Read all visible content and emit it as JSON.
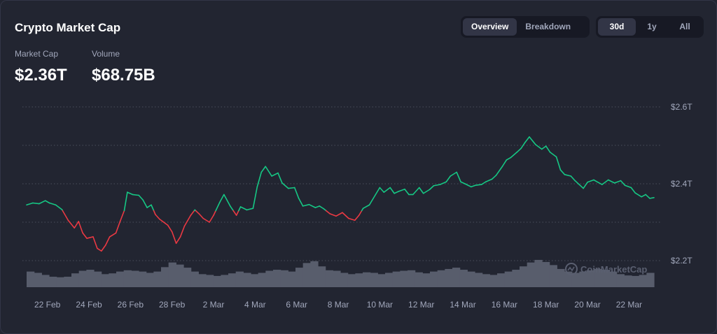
{
  "header": {
    "title": "Crypto Market Cap",
    "market_cap_label": "Market Cap",
    "market_cap_value": "$2.36T",
    "volume_label": "Volume",
    "volume_value": "$68.75B"
  },
  "view_toggle": {
    "overview_label": "Overview",
    "breakdown_label": "Breakdown",
    "selected": "Overview"
  },
  "range_toggle": {
    "d30_label": "30d",
    "y1_label": "1y",
    "all_label": "All",
    "selected": "30d"
  },
  "watermark": "CoinMarketCap",
  "colors": {
    "up": "#16c784",
    "down": "#ea3943",
    "volume": "#585d6c",
    "background": "#222531"
  },
  "chart_data": {
    "type": "line",
    "title": "",
    "y_axis_side": "right",
    "ylim": [
      2.2,
      2.6
    ],
    "y_ticks": [
      {
        "value": 2.2,
        "label": "$2.2T"
      },
      {
        "value": 2.4,
        "label": "$2.4T"
      },
      {
        "value": 2.6,
        "label": "$2.6T"
      }
    ],
    "x_ticks": [
      {
        "day": 1,
        "label": "22 Feb"
      },
      {
        "day": 3,
        "label": "24 Feb"
      },
      {
        "day": 5,
        "label": "26 Feb"
      },
      {
        "day": 7,
        "label": "28 Feb"
      },
      {
        "day": 9,
        "label": "2 Mar"
      },
      {
        "day": 11,
        "label": "4 Mar"
      },
      {
        "day": 13,
        "label": "6 Mar"
      },
      {
        "day": 15,
        "label": "8 Mar"
      },
      {
        "day": 17,
        "label": "10 Mar"
      },
      {
        "day": 19,
        "label": "12 Mar"
      },
      {
        "day": 21,
        "label": "14 Mar"
      },
      {
        "day": 23,
        "label": "16 Mar"
      },
      {
        "day": 25,
        "label": "18 Mar"
      },
      {
        "day": 27,
        "label": "20 Mar"
      },
      {
        "day": 29,
        "label": "22 Mar"
      }
    ],
    "grid": true,
    "baseline_value": 2.33,
    "series": [
      {
        "points": [
          [
            0.0,
            2.345
          ],
          [
            0.3,
            2.35
          ],
          [
            0.6,
            2.348
          ],
          [
            0.9,
            2.356
          ],
          [
            1.1,
            2.35
          ],
          [
            1.4,
            2.345
          ],
          [
            1.7,
            2.333
          ],
          [
            2.0,
            2.305
          ],
          [
            2.3,
            2.285
          ],
          [
            2.5,
            2.302
          ],
          [
            2.7,
            2.272
          ],
          [
            2.9,
            2.258
          ],
          [
            3.2,
            2.262
          ],
          [
            3.4,
            2.232
          ],
          [
            3.6,
            2.225
          ],
          [
            3.8,
            2.24
          ],
          [
            4.0,
            2.262
          ],
          [
            4.3,
            2.272
          ],
          [
            4.5,
            2.302
          ],
          [
            4.7,
            2.33
          ],
          [
            4.85,
            2.378
          ],
          [
            5.1,
            2.372
          ],
          [
            5.4,
            2.37
          ],
          [
            5.6,
            2.358
          ],
          [
            5.8,
            2.338
          ],
          [
            6.0,
            2.345
          ],
          [
            6.2,
            2.32
          ],
          [
            6.4,
            2.308
          ],
          [
            6.6,
            2.3
          ],
          [
            6.8,
            2.292
          ],
          [
            7.0,
            2.275
          ],
          [
            7.2,
            2.245
          ],
          [
            7.4,
            2.262
          ],
          [
            7.6,
            2.29
          ],
          [
            7.9,
            2.318
          ],
          [
            8.1,
            2.332
          ],
          [
            8.3,
            2.322
          ],
          [
            8.5,
            2.31
          ],
          [
            8.8,
            2.3
          ],
          [
            9.0,
            2.318
          ],
          [
            9.3,
            2.352
          ],
          [
            9.5,
            2.372
          ],
          [
            9.8,
            2.342
          ],
          [
            10.1,
            2.318
          ],
          [
            10.3,
            2.34
          ],
          [
            10.6,
            2.332
          ],
          [
            10.9,
            2.336
          ],
          [
            11.1,
            2.392
          ],
          [
            11.3,
            2.43
          ],
          [
            11.5,
            2.445
          ],
          [
            11.8,
            2.42
          ],
          [
            12.1,
            2.428
          ],
          [
            12.3,
            2.402
          ],
          [
            12.6,
            2.388
          ],
          [
            12.9,
            2.39
          ],
          [
            13.1,
            2.362
          ],
          [
            13.3,
            2.342
          ],
          [
            13.6,
            2.346
          ],
          [
            13.9,
            2.338
          ],
          [
            14.1,
            2.342
          ],
          [
            14.3,
            2.335
          ],
          [
            14.6,
            2.322
          ],
          [
            14.9,
            2.316
          ],
          [
            15.2,
            2.325
          ],
          [
            15.5,
            2.31
          ],
          [
            15.8,
            2.305
          ],
          [
            16.0,
            2.318
          ],
          [
            16.2,
            2.336
          ],
          [
            16.5,
            2.345
          ],
          [
            16.8,
            2.372
          ],
          [
            17.0,
            2.39
          ],
          [
            17.2,
            2.378
          ],
          [
            17.5,
            2.39
          ],
          [
            17.7,
            2.375
          ],
          [
            17.9,
            2.38
          ],
          [
            18.2,
            2.386
          ],
          [
            18.4,
            2.372
          ],
          [
            18.6,
            2.372
          ],
          [
            18.9,
            2.39
          ],
          [
            19.1,
            2.375
          ],
          [
            19.4,
            2.385
          ],
          [
            19.6,
            2.395
          ],
          [
            19.9,
            2.398
          ],
          [
            20.2,
            2.405
          ],
          [
            20.4,
            2.42
          ],
          [
            20.7,
            2.43
          ],
          [
            20.9,
            2.405
          ],
          [
            21.1,
            2.4
          ],
          [
            21.4,
            2.392
          ],
          [
            21.6,
            2.396
          ],
          [
            21.9,
            2.398
          ],
          [
            22.1,
            2.405
          ],
          [
            22.4,
            2.412
          ],
          [
            22.6,
            2.422
          ],
          [
            22.9,
            2.445
          ],
          [
            23.1,
            2.462
          ],
          [
            23.3,
            2.468
          ],
          [
            23.6,
            2.482
          ],
          [
            23.8,
            2.492
          ],
          [
            24.0,
            2.508
          ],
          [
            24.2,
            2.522
          ],
          [
            24.5,
            2.502
          ],
          [
            24.8,
            2.49
          ],
          [
            25.0,
            2.498
          ],
          [
            25.2,
            2.482
          ],
          [
            25.5,
            2.47
          ],
          [
            25.7,
            2.436
          ],
          [
            25.9,
            2.424
          ],
          [
            26.2,
            2.42
          ],
          [
            26.4,
            2.408
          ],
          [
            26.6,
            2.398
          ],
          [
            26.8,
            2.388
          ],
          [
            27.0,
            2.404
          ],
          [
            27.3,
            2.41
          ],
          [
            27.5,
            2.404
          ],
          [
            27.7,
            2.398
          ],
          [
            28.0,
            2.41
          ],
          [
            28.3,
            2.402
          ],
          [
            28.6,
            2.408
          ],
          [
            28.8,
            2.396
          ],
          [
            29.1,
            2.39
          ],
          [
            29.3,
            2.376
          ],
          [
            29.6,
            2.366
          ],
          [
            29.8,
            2.372
          ],
          [
            30.0,
            2.362
          ],
          [
            30.2,
            2.364
          ]
        ]
      }
    ],
    "volume_bars": {
      "values": [
        0.55,
        0.5,
        0.42,
        0.35,
        0.33,
        0.35,
        0.48,
        0.58,
        0.62,
        0.55,
        0.45,
        0.48,
        0.55,
        0.6,
        0.58,
        0.55,
        0.5,
        0.55,
        0.72,
        0.9,
        0.82,
        0.7,
        0.55,
        0.45,
        0.42,
        0.38,
        0.42,
        0.48,
        0.55,
        0.5,
        0.45,
        0.5,
        0.58,
        0.62,
        0.6,
        0.55,
        0.7,
        0.88,
        0.95,
        0.75,
        0.6,
        0.58,
        0.5,
        0.45,
        0.48,
        0.52,
        0.5,
        0.45,
        0.5,
        0.55,
        0.58,
        0.6,
        0.52,
        0.48,
        0.55,
        0.6,
        0.65,
        0.7,
        0.62,
        0.55,
        0.5,
        0.45,
        0.42,
        0.48,
        0.55,
        0.62,
        0.75,
        0.9,
        1.0,
        0.92,
        0.8,
        0.65,
        0.55,
        0.5,
        0.55,
        0.6,
        0.65,
        0.62,
        0.55,
        0.45,
        0.4,
        0.38,
        0.42,
        0.5
      ]
    }
  }
}
